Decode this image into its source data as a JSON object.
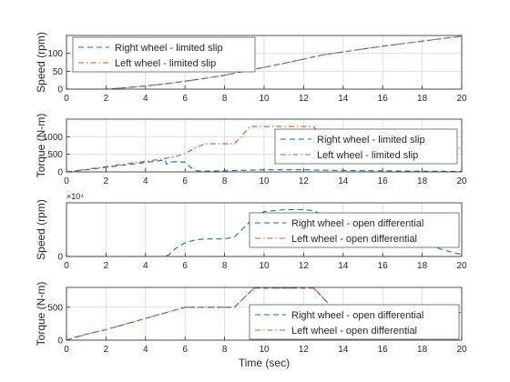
{
  "figure": {
    "shared_xlabel": "Time (sec)",
    "colors": {
      "right": "#0072bd",
      "left": "#d95319",
      "grid": "#dfdfdf",
      "axis": "#262626"
    }
  },
  "chart_data": [
    {
      "type": "line",
      "ylabel": "Speed (rpm)",
      "xlim": [
        0,
        20
      ],
      "ylim": [
        0,
        150
      ],
      "xticks": [
        0,
        2,
        4,
        6,
        8,
        10,
        12,
        14,
        16,
        18,
        20
      ],
      "yticks": [
        0,
        50,
        100
      ],
      "exponent_label": "",
      "grid": true,
      "legend_position": "top-left",
      "series": [
        {
          "name": "Right wheel - limited slip",
          "color": "#0072bd",
          "dash": "dash",
          "x": [
            0,
            2,
            3,
            4,
            5,
            6,
            7,
            8,
            9,
            10,
            11,
            12,
            13,
            14,
            15,
            16,
            17,
            18,
            19,
            20
          ],
          "y": [
            0,
            0,
            4,
            9,
            15,
            22,
            30,
            39,
            50,
            61,
            72,
            84,
            96,
            104,
            112,
            120,
            127,
            134,
            141,
            148
          ]
        },
        {
          "name": "Left wheel - limited slip",
          "color": "#d95319",
          "dash": "dashdot",
          "x": [
            0,
            2,
            3,
            4,
            5,
            6,
            7,
            8,
            9,
            10,
            11,
            12,
            13,
            14,
            15,
            16,
            17,
            18,
            19,
            20
          ],
          "y": [
            0,
            0,
            4,
            9,
            15,
            22,
            30,
            39,
            50,
            61,
            72,
            84,
            96,
            104,
            112,
            120,
            127,
            134,
            141,
            148
          ]
        }
      ]
    },
    {
      "type": "line",
      "ylabel": "Torque (N-m)",
      "xlim": [
        0,
        20
      ],
      "ylim": [
        0,
        1500
      ],
      "xticks": [
        0,
        2,
        4,
        6,
        8,
        10,
        12,
        14,
        16,
        18,
        20
      ],
      "yticks": [
        0,
        500,
        1000
      ],
      "exponent_label": "",
      "grid": true,
      "legend_position": "middle-right",
      "series": [
        {
          "name": "Right wheel - limited slip",
          "color": "#0072bd",
          "dash": "dash",
          "x": [
            0,
            1,
            2,
            3,
            4,
            5,
            5.05,
            5.3,
            6.0,
            6.3,
            6.6,
            7,
            8,
            10,
            12,
            14,
            16,
            18,
            19.5,
            20
          ],
          "y": [
            0,
            60,
            130,
            200,
            270,
            340,
            220,
            290,
            280,
            120,
            30,
            20,
            30,
            60,
            60,
            40,
            30,
            20,
            15,
            10
          ]
        },
        {
          "name": "Left wheel - limited slip",
          "color": "#d95319",
          "dash": "dashdot",
          "x": [
            0,
            1,
            2,
            3,
            4,
            5,
            5.6,
            6.1,
            6.5,
            7,
            8.5,
            9.3,
            12.5,
            13.3,
            15,
            17,
            18,
            19,
            19.8,
            20
          ],
          "y": [
            0,
            70,
            150,
            230,
            300,
            380,
            450,
            550,
            680,
            800,
            800,
            1290,
            1290,
            700,
            680,
            680,
            680,
            690,
            700,
            600
          ]
        }
      ]
    },
    {
      "type": "line",
      "ylabel": "Speed (rpm)",
      "xlim": [
        0,
        20
      ],
      "ylim": [
        0,
        55000
      ],
      "xticks": [
        0,
        2,
        4,
        6,
        8,
        10,
        12,
        14,
        16,
        18,
        20
      ],
      "yticks": [
        0
      ],
      "exponent_label": "×10⁴",
      "grid": true,
      "legend_position": "top-right",
      "series": [
        {
          "name": "Right wheel - open differential",
          "color": "#0072bd",
          "dash": "dash",
          "x": [
            0,
            5,
            5.2,
            5.5,
            6,
            6.5,
            7,
            7.5,
            8,
            8.5,
            9,
            9.5,
            10,
            11,
            12,
            12.5,
            13,
            14,
            15,
            16,
            17,
            18,
            19,
            20
          ],
          "y": [
            0,
            0,
            2000,
            8000,
            14000,
            17000,
            18000,
            18000,
            18000,
            20000,
            30000,
            40000,
            46000,
            48000,
            48000,
            47000,
            42000,
            37000,
            32000,
            27000,
            22000,
            15000,
            7000,
            2000
          ]
        },
        {
          "name": "Left wheel - open differential",
          "color": "#d95319",
          "dash": "dashdot",
          "x": [
            0,
            20
          ],
          "y": [
            0,
            0
          ]
        }
      ]
    },
    {
      "type": "line",
      "ylabel": "Torque (N-m)",
      "xlim": [
        0,
        20
      ],
      "ylim": [
        0,
        800
      ],
      "xticks": [
        0,
        2,
        4,
        6,
        8,
        10,
        12,
        14,
        16,
        18,
        20
      ],
      "yticks": [
        0,
        500
      ],
      "exponent_label": "",
      "grid": true,
      "legend_position": "middle-right",
      "series": [
        {
          "name": "Right wheel - open differential",
          "color": "#0072bd",
          "dash": "dash",
          "x": [
            0,
            0.3,
            1,
            2,
            4,
            6,
            8.5,
            9.5,
            12.5,
            13.5,
            15,
            17,
            19,
            20
          ],
          "y": [
            0,
            30,
            90,
            160,
            330,
            500,
            500,
            790,
            790,
            480,
            470,
            460,
            430,
            420
          ]
        },
        {
          "name": "Left wheel - open differential",
          "color": "#d95319",
          "dash": "dashdot",
          "x": [
            0,
            0.3,
            1,
            2,
            4,
            6,
            8.5,
            9.5,
            12.5,
            13.5,
            15,
            17,
            19,
            20
          ],
          "y": [
            0,
            30,
            90,
            160,
            330,
            500,
            500,
            790,
            790,
            480,
            470,
            460,
            430,
            420
          ]
        }
      ]
    }
  ]
}
